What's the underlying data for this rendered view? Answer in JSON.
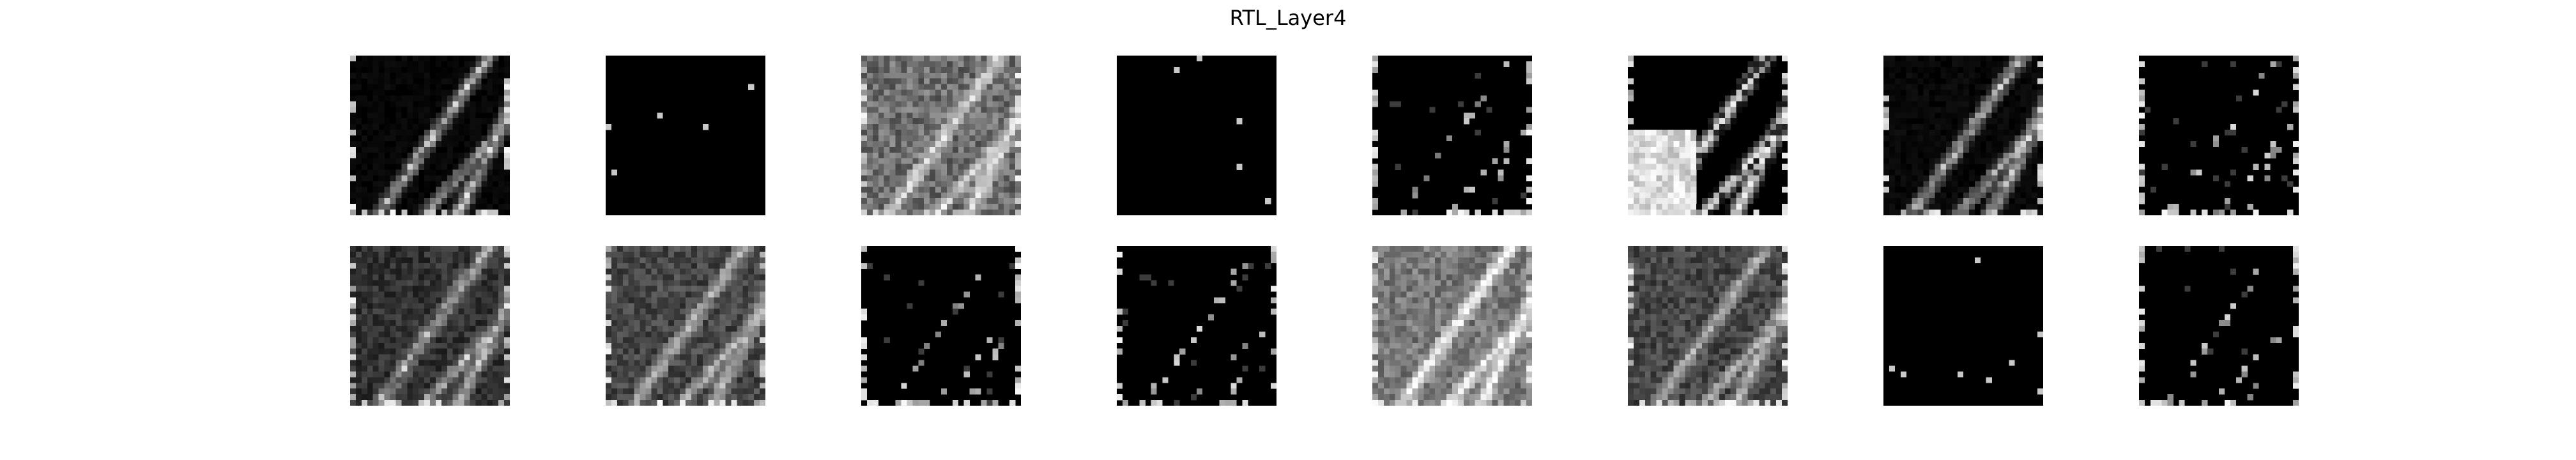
{
  "figure": {
    "title": "RTL_Layer4"
  },
  "grid": {
    "rows": 2,
    "columns": 8
  },
  "feature_maps": [
    {
      "row": 0,
      "col": 0,
      "style": "edge",
      "brightness": 0.35
    },
    {
      "row": 0,
      "col": 1,
      "style": "dark",
      "brightness": 0.02
    },
    {
      "row": 0,
      "col": 2,
      "style": "gray",
      "brightness": 0.6
    },
    {
      "row": 0,
      "col": 3,
      "style": "dark",
      "brightness": 0.02
    },
    {
      "row": 0,
      "col": 4,
      "style": "sparse",
      "brightness": 0.1
    },
    {
      "row": 0,
      "col": 5,
      "style": "contrast",
      "brightness": 0.45
    },
    {
      "row": 0,
      "col": 6,
      "style": "edge",
      "brightness": 0.4
    },
    {
      "row": 0,
      "col": 7,
      "style": "sparse",
      "brightness": 0.06
    },
    {
      "row": 1,
      "col": 0,
      "style": "midedge",
      "brightness": 0.3
    },
    {
      "row": 1,
      "col": 1,
      "style": "midgray",
      "brightness": 0.38
    },
    {
      "row": 1,
      "col": 2,
      "style": "sparse",
      "brightness": 0.08
    },
    {
      "row": 1,
      "col": 3,
      "style": "sparse",
      "brightness": 0.07
    },
    {
      "row": 1,
      "col": 4,
      "style": "bright",
      "brightness": 0.65
    },
    {
      "row": 1,
      "col": 5,
      "style": "midgray",
      "brightness": 0.5
    },
    {
      "row": 1,
      "col": 6,
      "style": "dark",
      "brightness": 0.01
    },
    {
      "row": 1,
      "col": 7,
      "style": "sparse",
      "brightness": 0.05
    }
  ]
}
